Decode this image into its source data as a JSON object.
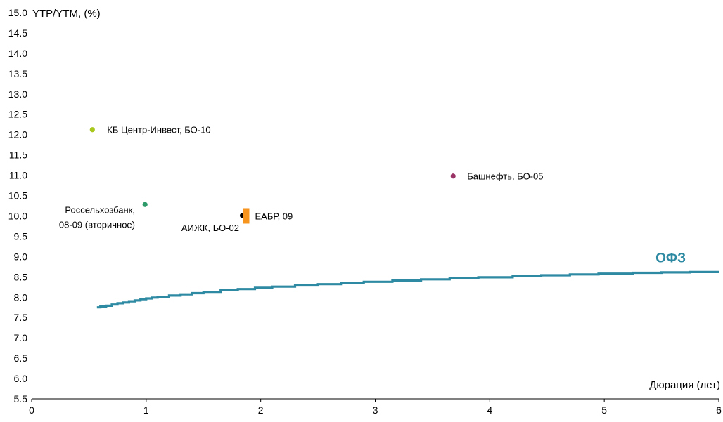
{
  "chart_data": {
    "type": "scatter",
    "ylabel": "YTP/YTM, (%)",
    "xlabel": "Дюрация (лет)",
    "xlim": [
      0,
      6
    ],
    "ylim": [
      5.5,
      15.0
    ],
    "x_ticks": [
      "0",
      "1",
      "2",
      "3",
      "4",
      "5",
      "6"
    ],
    "y_ticks": [
      "5.5",
      "6.0",
      "6.5",
      "7.0",
      "7.5",
      "8.0",
      "8.5",
      "9.0",
      "9.5",
      "10.0",
      "10.5",
      "11.0",
      "11.5",
      "12.0",
      "12.5",
      "13.0",
      "13.5",
      "14.0",
      "14.5",
      "15.0"
    ],
    "grid": false,
    "points": [
      {
        "label": "КБ Центр-Инвест, БО-10",
        "x": 0.53,
        "y": 12.12,
        "color": "#a8c81e",
        "marker": "circle"
      },
      {
        "label": "Россельхозбанк, 08-09 (вторичное)",
        "label_lines": [
          "Россельхозбанк,",
          "08-09 (вторичное)"
        ],
        "x": 0.99,
        "y": 10.28,
        "color": "#2e9a6a",
        "marker": "circle"
      },
      {
        "label": "АИЖК, БО-02",
        "x": 1.84,
        "y": 10.01,
        "color": "#000000",
        "marker": "circle"
      },
      {
        "label": "ЕАБР, 09",
        "x": 1.87,
        "y": 10.0,
        "color": "#f7941d",
        "marker": "rect"
      },
      {
        "label": "Башнефть, БО-05",
        "x": 3.68,
        "y": 10.98,
        "color": "#9b3466",
        "marker": "circle"
      }
    ],
    "series": [
      {
        "name": "ОФЗ",
        "color": "#2e8aa3",
        "x": [
          0.57,
          0.6,
          0.65,
          0.7,
          0.75,
          0.8,
          0.85,
          0.9,
          0.95,
          1.0,
          1.05,
          1.1,
          1.2,
          1.3,
          1.4,
          1.5,
          1.65,
          1.8,
          1.95,
          2.1,
          2.3,
          2.5,
          2.7,
          2.9,
          3.15,
          3.4,
          3.65,
          3.9,
          4.2,
          4.45,
          4.7,
          4.95,
          5.25,
          5.5,
          5.75,
          6.0
        ],
        "y": [
          7.75,
          7.77,
          7.79,
          7.82,
          7.85,
          7.87,
          7.9,
          7.92,
          7.95,
          7.97,
          7.99,
          8.01,
          8.04,
          8.07,
          8.1,
          8.13,
          8.17,
          8.2,
          8.23,
          8.26,
          8.29,
          8.32,
          8.35,
          8.38,
          8.41,
          8.44,
          8.47,
          8.49,
          8.52,
          8.54,
          8.56,
          8.58,
          8.6,
          8.61,
          8.62,
          8.62
        ]
      }
    ]
  }
}
